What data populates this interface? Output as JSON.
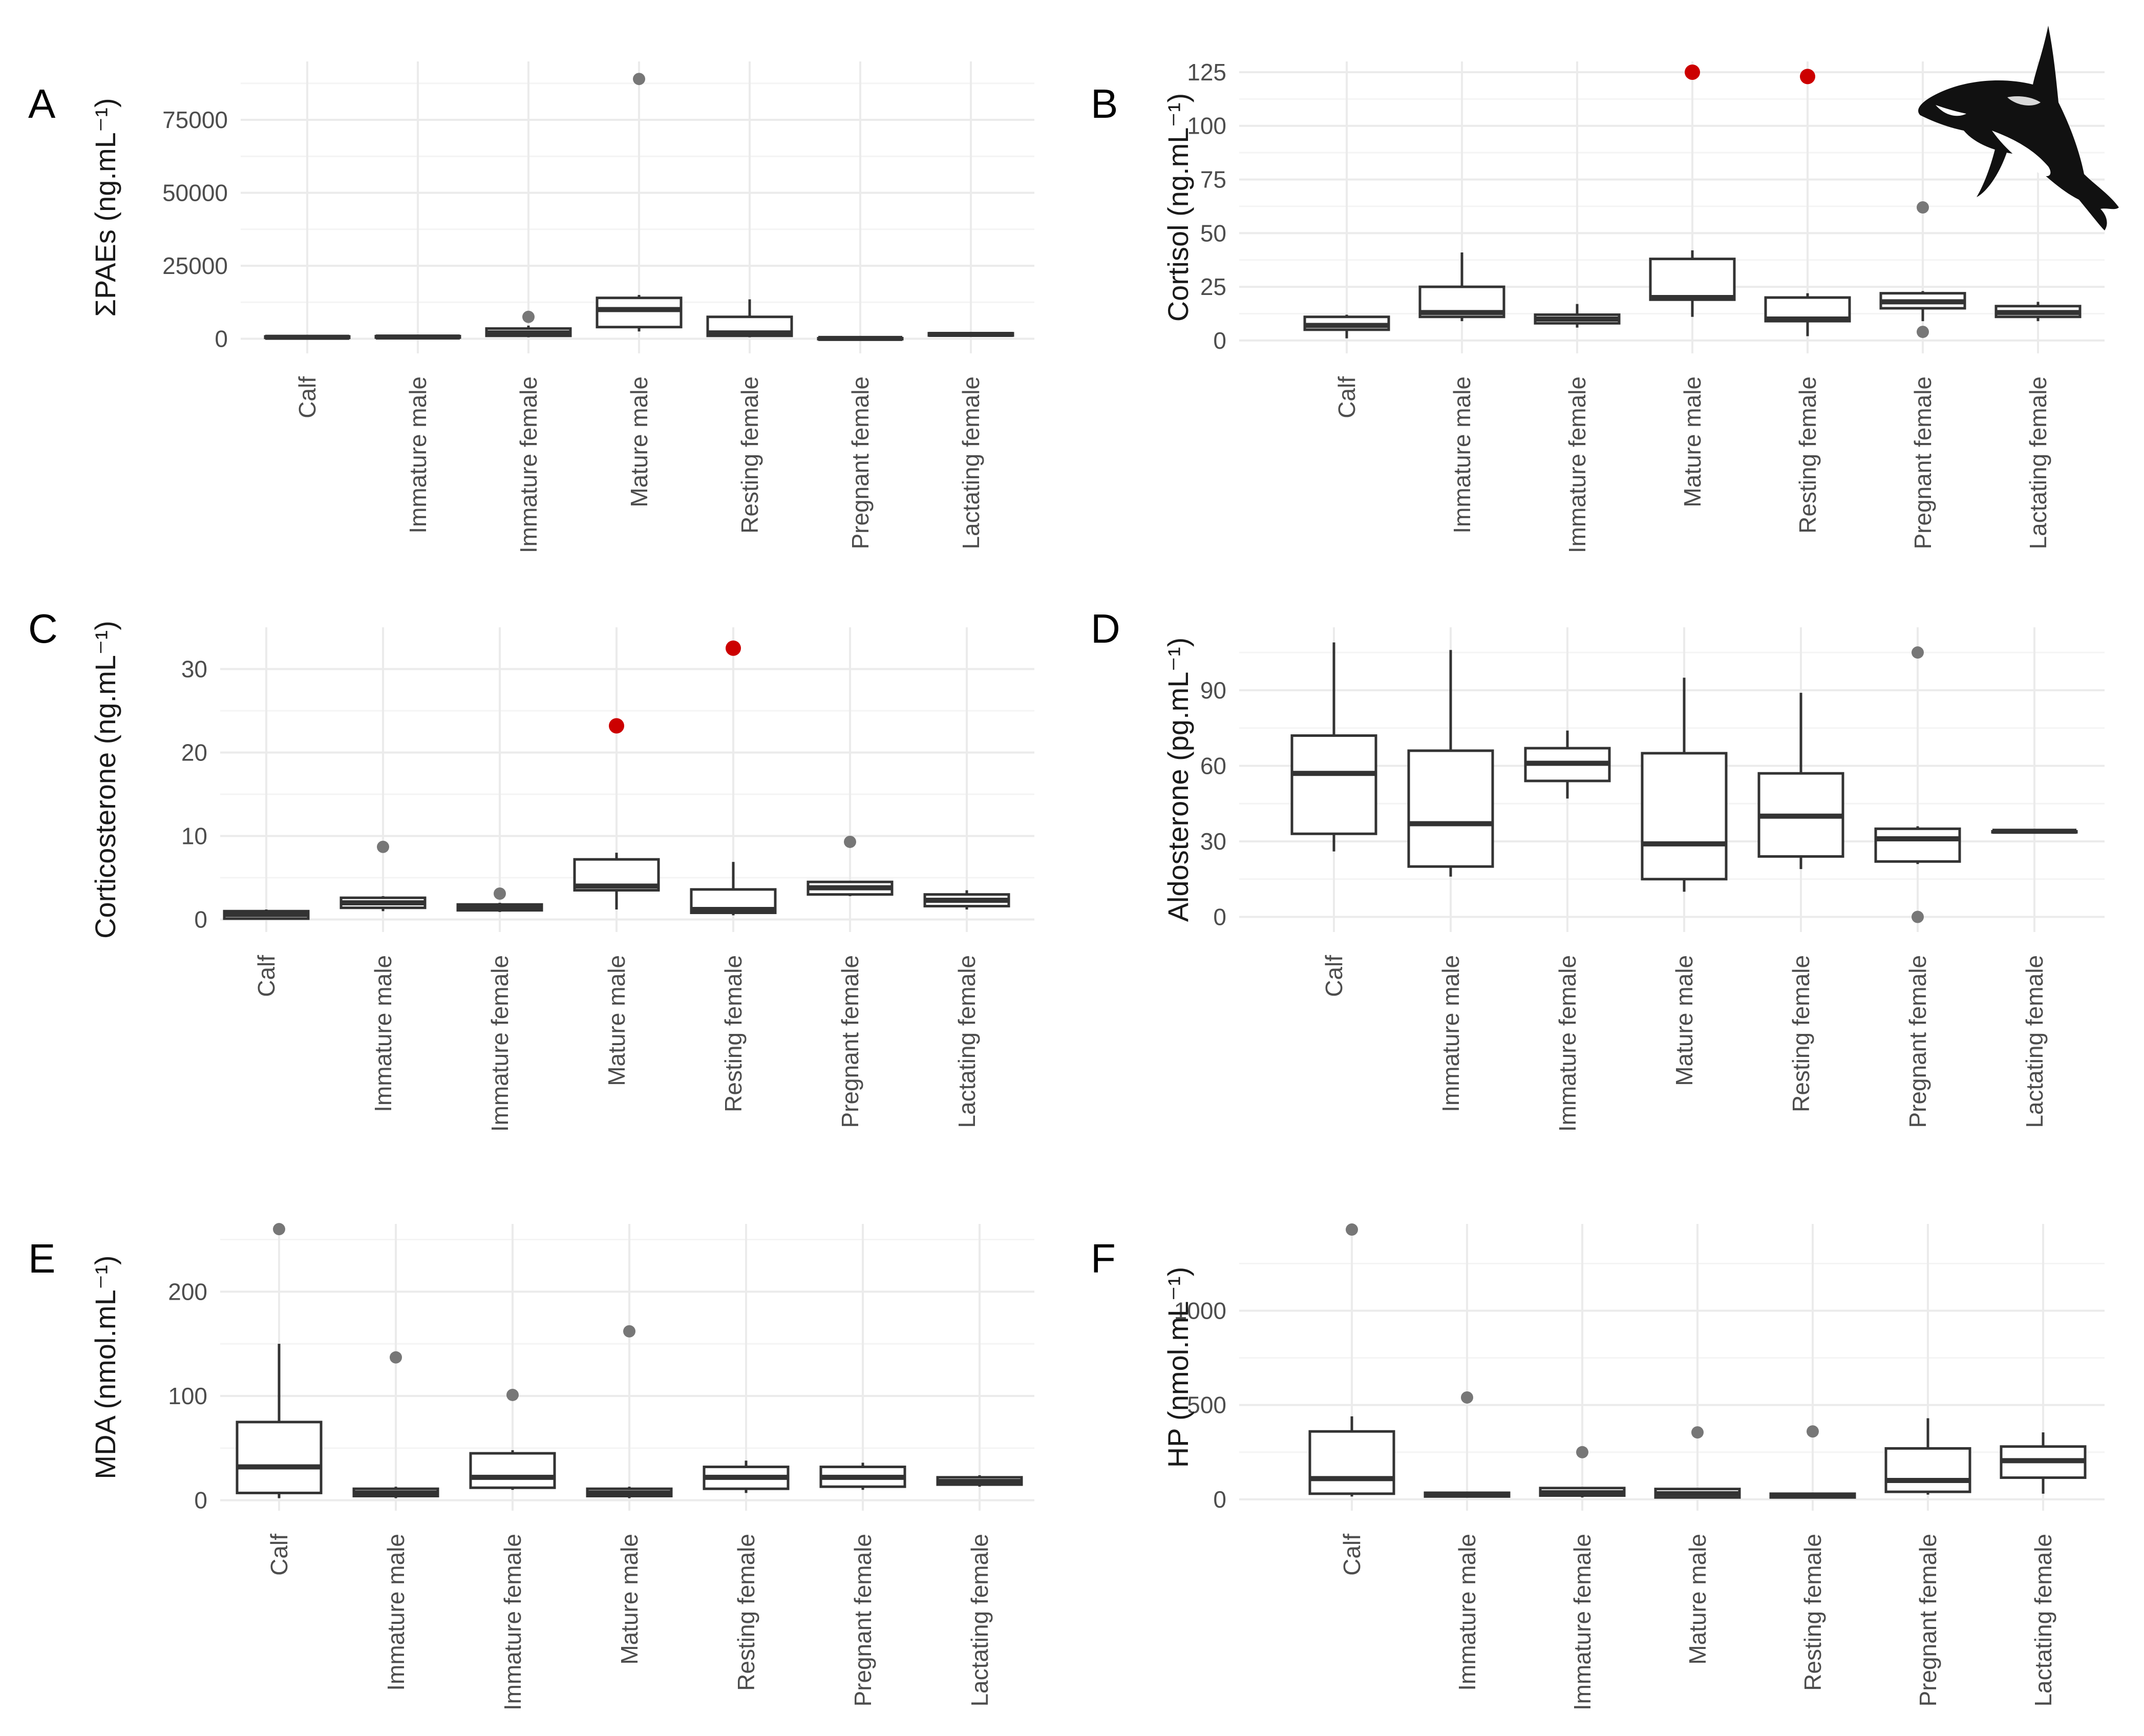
{
  "figure": {
    "icon": "orca-icon",
    "colors": {
      "outlier_default": "#777777",
      "outlier_highlight": "#cc0000",
      "box_stroke": "#333333",
      "grid": "#ebebeb"
    }
  },
  "chart_data": [
    {
      "type": "box",
      "panel": "A",
      "ylabel": "ΣPAEs (ng.mL⁻¹)",
      "ylim": [
        -5000,
        95000
      ],
      "yticks": [
        0,
        25000,
        50000,
        75000
      ],
      "yticklabels": [
        "0",
        "25000",
        "50000",
        "75000"
      ],
      "categories": [
        "Calf",
        "Immature male",
        "Immature female",
        "Mature male",
        "Resting female",
        "Pregnant female",
        "Lactating female"
      ],
      "boxes": [
        {
          "low": 150,
          "q1": 300,
          "median": 500,
          "q3": 800,
          "high": 1100,
          "outliers": []
        },
        {
          "low": 200,
          "q1": 400,
          "median": 600,
          "q3": 900,
          "high": 1100,
          "outliers": []
        },
        {
          "low": 500,
          "q1": 1000,
          "median": 2000,
          "q3": 3500,
          "high": 4500,
          "outliers": [
            {
              "v": 7500,
              "highlight": false
            }
          ]
        },
        {
          "low": 2500,
          "q1": 4000,
          "median": 10000,
          "q3": 14000,
          "high": 15000,
          "outliers": [
            {
              "v": 89000,
              "highlight": false
            }
          ]
        },
        {
          "low": 500,
          "q1": 1000,
          "median": 2000,
          "q3": 7500,
          "high": 13500,
          "outliers": []
        },
        {
          "low": 0,
          "q1": 0,
          "median": 100,
          "q3": 200,
          "high": 300,
          "outliers": []
        },
        {
          "low": 900,
          "q1": 1100,
          "median": 1500,
          "q3": 1900,
          "high": 2100,
          "outliers": []
        }
      ]
    },
    {
      "type": "box",
      "panel": "B",
      "ylabel": "Cortisol (ng.mL⁻¹)",
      "ylim": [
        -6,
        130
      ],
      "yticks": [
        0,
        25,
        50,
        75,
        100,
        125
      ],
      "yticklabels": [
        "0",
        "25",
        "50",
        "75",
        "100",
        "125"
      ],
      "categories": [
        "Calf",
        "Immature male",
        "Immature female",
        "Mature male",
        "Resting female",
        "Pregnant female",
        "Lactating female"
      ],
      "boxes": [
        {
          "low": 1,
          "q1": 5,
          "median": 7,
          "q3": 11,
          "high": 12,
          "outliers": []
        },
        {
          "low": 9,
          "q1": 11,
          "median": 13,
          "q3": 25,
          "high": 41,
          "outliers": []
        },
        {
          "low": 6,
          "q1": 8,
          "median": 10,
          "q3": 12,
          "high": 17,
          "outliers": []
        },
        {
          "low": 11,
          "q1": 19,
          "median": 20,
          "q3": 38,
          "high": 42,
          "outliers": [
            {
              "v": 125,
              "highlight": true
            }
          ]
        },
        {
          "low": 2,
          "q1": 9,
          "median": 10,
          "q3": 20,
          "high": 22,
          "outliers": [
            {
              "v": 123,
              "highlight": true
            }
          ]
        },
        {
          "low": 9,
          "q1": 15,
          "median": 18,
          "q3": 22,
          "high": 23,
          "outliers": [
            {
              "v": 62,
              "highlight": false
            },
            {
              "v": 4,
              "highlight": false
            }
          ]
        },
        {
          "low": 9,
          "q1": 11,
          "median": 13,
          "q3": 16,
          "high": 18,
          "outliers": []
        }
      ]
    },
    {
      "type": "box",
      "panel": "C",
      "ylabel": "Corticosterone (ng.mL⁻¹)",
      "ylim": [
        -1.5,
        35
      ],
      "yticks": [
        0,
        10,
        20,
        30
      ],
      "yticklabels": [
        "0",
        "10",
        "20",
        "30"
      ],
      "categories": [
        "Calf",
        "Immature male",
        "Immature female",
        "Mature male",
        "Resting female",
        "Pregnant female",
        "Lactating female"
      ],
      "boxes": [
        {
          "low": 0,
          "q1": 0.1,
          "median": 0.6,
          "q3": 1.0,
          "high": 1.2,
          "outliers": []
        },
        {
          "low": 1.0,
          "q1": 1.4,
          "median": 2.0,
          "q3": 2.6,
          "high": 2.8,
          "outliers": [
            {
              "v": 8.7,
              "highlight": false
            }
          ]
        },
        {
          "low": 0.9,
          "q1": 1.1,
          "median": 1.5,
          "q3": 1.8,
          "high": 2.0,
          "outliers": [
            {
              "v": 3.1,
              "highlight": false
            }
          ]
        },
        {
          "low": 1.2,
          "q1": 3.5,
          "median": 4.0,
          "q3": 7.2,
          "high": 8.0,
          "outliers": [
            {
              "v": 23.2,
              "highlight": true
            }
          ]
        },
        {
          "low": 0.5,
          "q1": 0.8,
          "median": 1.2,
          "q3": 3.6,
          "high": 6.9,
          "outliers": [
            {
              "v": 32.5,
              "highlight": true
            }
          ]
        },
        {
          "low": 2.8,
          "q1": 3.0,
          "median": 3.8,
          "q3": 4.5,
          "high": 4.6,
          "outliers": [
            {
              "v": 9.3,
              "highlight": false
            }
          ]
        },
        {
          "low": 1.2,
          "q1": 1.6,
          "median": 2.3,
          "q3": 3.0,
          "high": 3.5,
          "outliers": []
        }
      ]
    },
    {
      "type": "box",
      "panel": "D",
      "ylabel": "Aldosterone (pg.mL⁻¹)",
      "ylim": [
        -6,
        115
      ],
      "yticks": [
        0,
        30,
        60,
        90
      ],
      "yticklabels": [
        "0",
        "30",
        "60",
        "90"
      ],
      "categories": [
        "Calf",
        "Immature male",
        "Immature female",
        "Mature male",
        "Resting female",
        "Pregnant female",
        "Lactating female"
      ],
      "boxes": [
        {
          "low": 26,
          "q1": 33,
          "median": 57,
          "q3": 72,
          "high": 109,
          "outliers": []
        },
        {
          "low": 16,
          "q1": 20,
          "median": 37,
          "q3": 66,
          "high": 106,
          "outliers": []
        },
        {
          "low": 47,
          "q1": 54,
          "median": 61,
          "q3": 67,
          "high": 74,
          "outliers": []
        },
        {
          "low": 10,
          "q1": 15,
          "median": 29,
          "q3": 65,
          "high": 95,
          "outliers": []
        },
        {
          "low": 19,
          "q1": 24,
          "median": 40,
          "q3": 57,
          "high": 89,
          "outliers": []
        },
        {
          "low": 21,
          "q1": 22,
          "median": 31,
          "q3": 35,
          "high": 36,
          "outliers": [
            {
              "v": 105,
              "highlight": false
            },
            {
              "v": 0,
              "highlight": false
            }
          ]
        },
        {
          "low": 34,
          "q1": 34,
          "median": 34,
          "q3": 34,
          "high": 34,
          "outliers": []
        }
      ]
    },
    {
      "type": "box",
      "panel": "E",
      "ylabel": "MDA (nmol.mL⁻¹)",
      "ylim": [
        -10,
        265
      ],
      "yticks": [
        0,
        100,
        200
      ],
      "yticklabels": [
        "0",
        "100",
        "200"
      ],
      "categories": [
        "Calf",
        "Immature male",
        "Immature female",
        "Mature male",
        "Resting female",
        "Pregnant female",
        "Lactating female"
      ],
      "boxes": [
        {
          "low": 2,
          "q1": 7,
          "median": 32,
          "q3": 75,
          "high": 150,
          "outliers": [
            {
              "v": 260,
              "highlight": false
            }
          ]
        },
        {
          "low": 2,
          "q1": 4,
          "median": 7,
          "q3": 11,
          "high": 13,
          "outliers": [
            {
              "v": 137,
              "highlight": false
            }
          ]
        },
        {
          "low": 10,
          "q1": 12,
          "median": 22,
          "q3": 45,
          "high": 48,
          "outliers": [
            {
              "v": 101,
              "highlight": false
            }
          ]
        },
        {
          "low": 2,
          "q1": 4,
          "median": 7,
          "q3": 11,
          "high": 13,
          "outliers": [
            {
              "v": 162,
              "highlight": false
            }
          ]
        },
        {
          "low": 7,
          "q1": 11,
          "median": 22,
          "q3": 32,
          "high": 38,
          "outliers": []
        },
        {
          "low": 10,
          "q1": 13,
          "median": 22,
          "q3": 32,
          "high": 36,
          "outliers": []
        },
        {
          "low": 13,
          "q1": 15,
          "median": 18,
          "q3": 22,
          "high": 24,
          "outliers": []
        }
      ]
    },
    {
      "type": "box",
      "panel": "F",
      "ylabel": "HP (nmol.mL⁻¹)",
      "ylim": [
        -60,
        1460
      ],
      "yticks": [
        0,
        500,
        1000
      ],
      "yticklabels": [
        "0",
        "500",
        "1000"
      ],
      "categories": [
        "Calf",
        "Immature male",
        "Immature female",
        "Mature male",
        "Resting female",
        "Pregnant female",
        "Lactating female"
      ],
      "boxes": [
        {
          "low": 15,
          "q1": 30,
          "median": 110,
          "q3": 360,
          "high": 440,
          "outliers": [
            {
              "v": 1430,
              "highlight": false
            }
          ]
        },
        {
          "low": 10,
          "q1": 15,
          "median": 25,
          "q3": 35,
          "high": 40,
          "outliers": [
            {
              "v": 540,
              "highlight": false
            }
          ]
        },
        {
          "low": 10,
          "q1": 20,
          "median": 35,
          "q3": 60,
          "high": 65,
          "outliers": [
            {
              "v": 250,
              "highlight": false
            }
          ]
        },
        {
          "low": 5,
          "q1": 10,
          "median": 30,
          "q3": 55,
          "high": 60,
          "outliers": [
            {
              "v": 355,
              "highlight": false
            }
          ]
        },
        {
          "low": 5,
          "q1": 10,
          "median": 20,
          "q3": 30,
          "high": 35,
          "outliers": [
            {
              "v": 360,
              "highlight": false
            }
          ]
        },
        {
          "low": 25,
          "q1": 40,
          "median": 100,
          "q3": 270,
          "high": 430,
          "outliers": []
        },
        {
          "low": 30,
          "q1": 115,
          "median": 205,
          "q3": 280,
          "high": 355,
          "outliers": []
        }
      ]
    }
  ]
}
